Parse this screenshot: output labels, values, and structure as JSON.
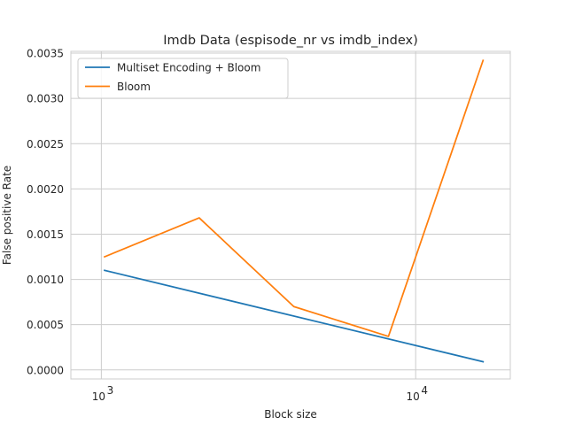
{
  "chart_data": {
    "type": "line",
    "title": "Imdb Data (espisode_nr vs imdb_index)",
    "xlabel": "Block size",
    "ylabel": "False positive Rate",
    "xscale": "log",
    "xlim": [
      800,
      20000
    ],
    "ylim": [
      -0.0001,
      0.00352
    ],
    "x_ticks": [
      {
        "value": 1000,
        "base": "10",
        "exp": "3"
      },
      {
        "value": 10000,
        "base": "10",
        "exp": "4"
      }
    ],
    "y_ticks": [
      {
        "value": 0.0,
        "label": "0.0000"
      },
      {
        "value": 0.0005,
        "label": "0.0005"
      },
      {
        "value": 0.001,
        "label": "0.0010"
      },
      {
        "value": 0.0015,
        "label": "0.0015"
      },
      {
        "value": 0.002,
        "label": "0.0020"
      },
      {
        "value": 0.0025,
        "label": "0.0025"
      },
      {
        "value": 0.003,
        "label": "0.0030"
      },
      {
        "value": 0.0035,
        "label": "0.0035"
      }
    ],
    "grid": true,
    "legend_position": "upper left",
    "series": [
      {
        "name": "Multiset Encoding + Bloom",
        "color": "#1f77b4",
        "x": [
          1024,
          16384
        ],
        "y": [
          0.0011,
          9e-05
        ]
      },
      {
        "name": "Bloom",
        "color": "#ff7f0e",
        "x": [
          1024,
          2048,
          4096,
          8192,
          16384
        ],
        "y": [
          0.00125,
          0.00168,
          0.0007,
          0.00037,
          0.00342
        ]
      }
    ]
  }
}
